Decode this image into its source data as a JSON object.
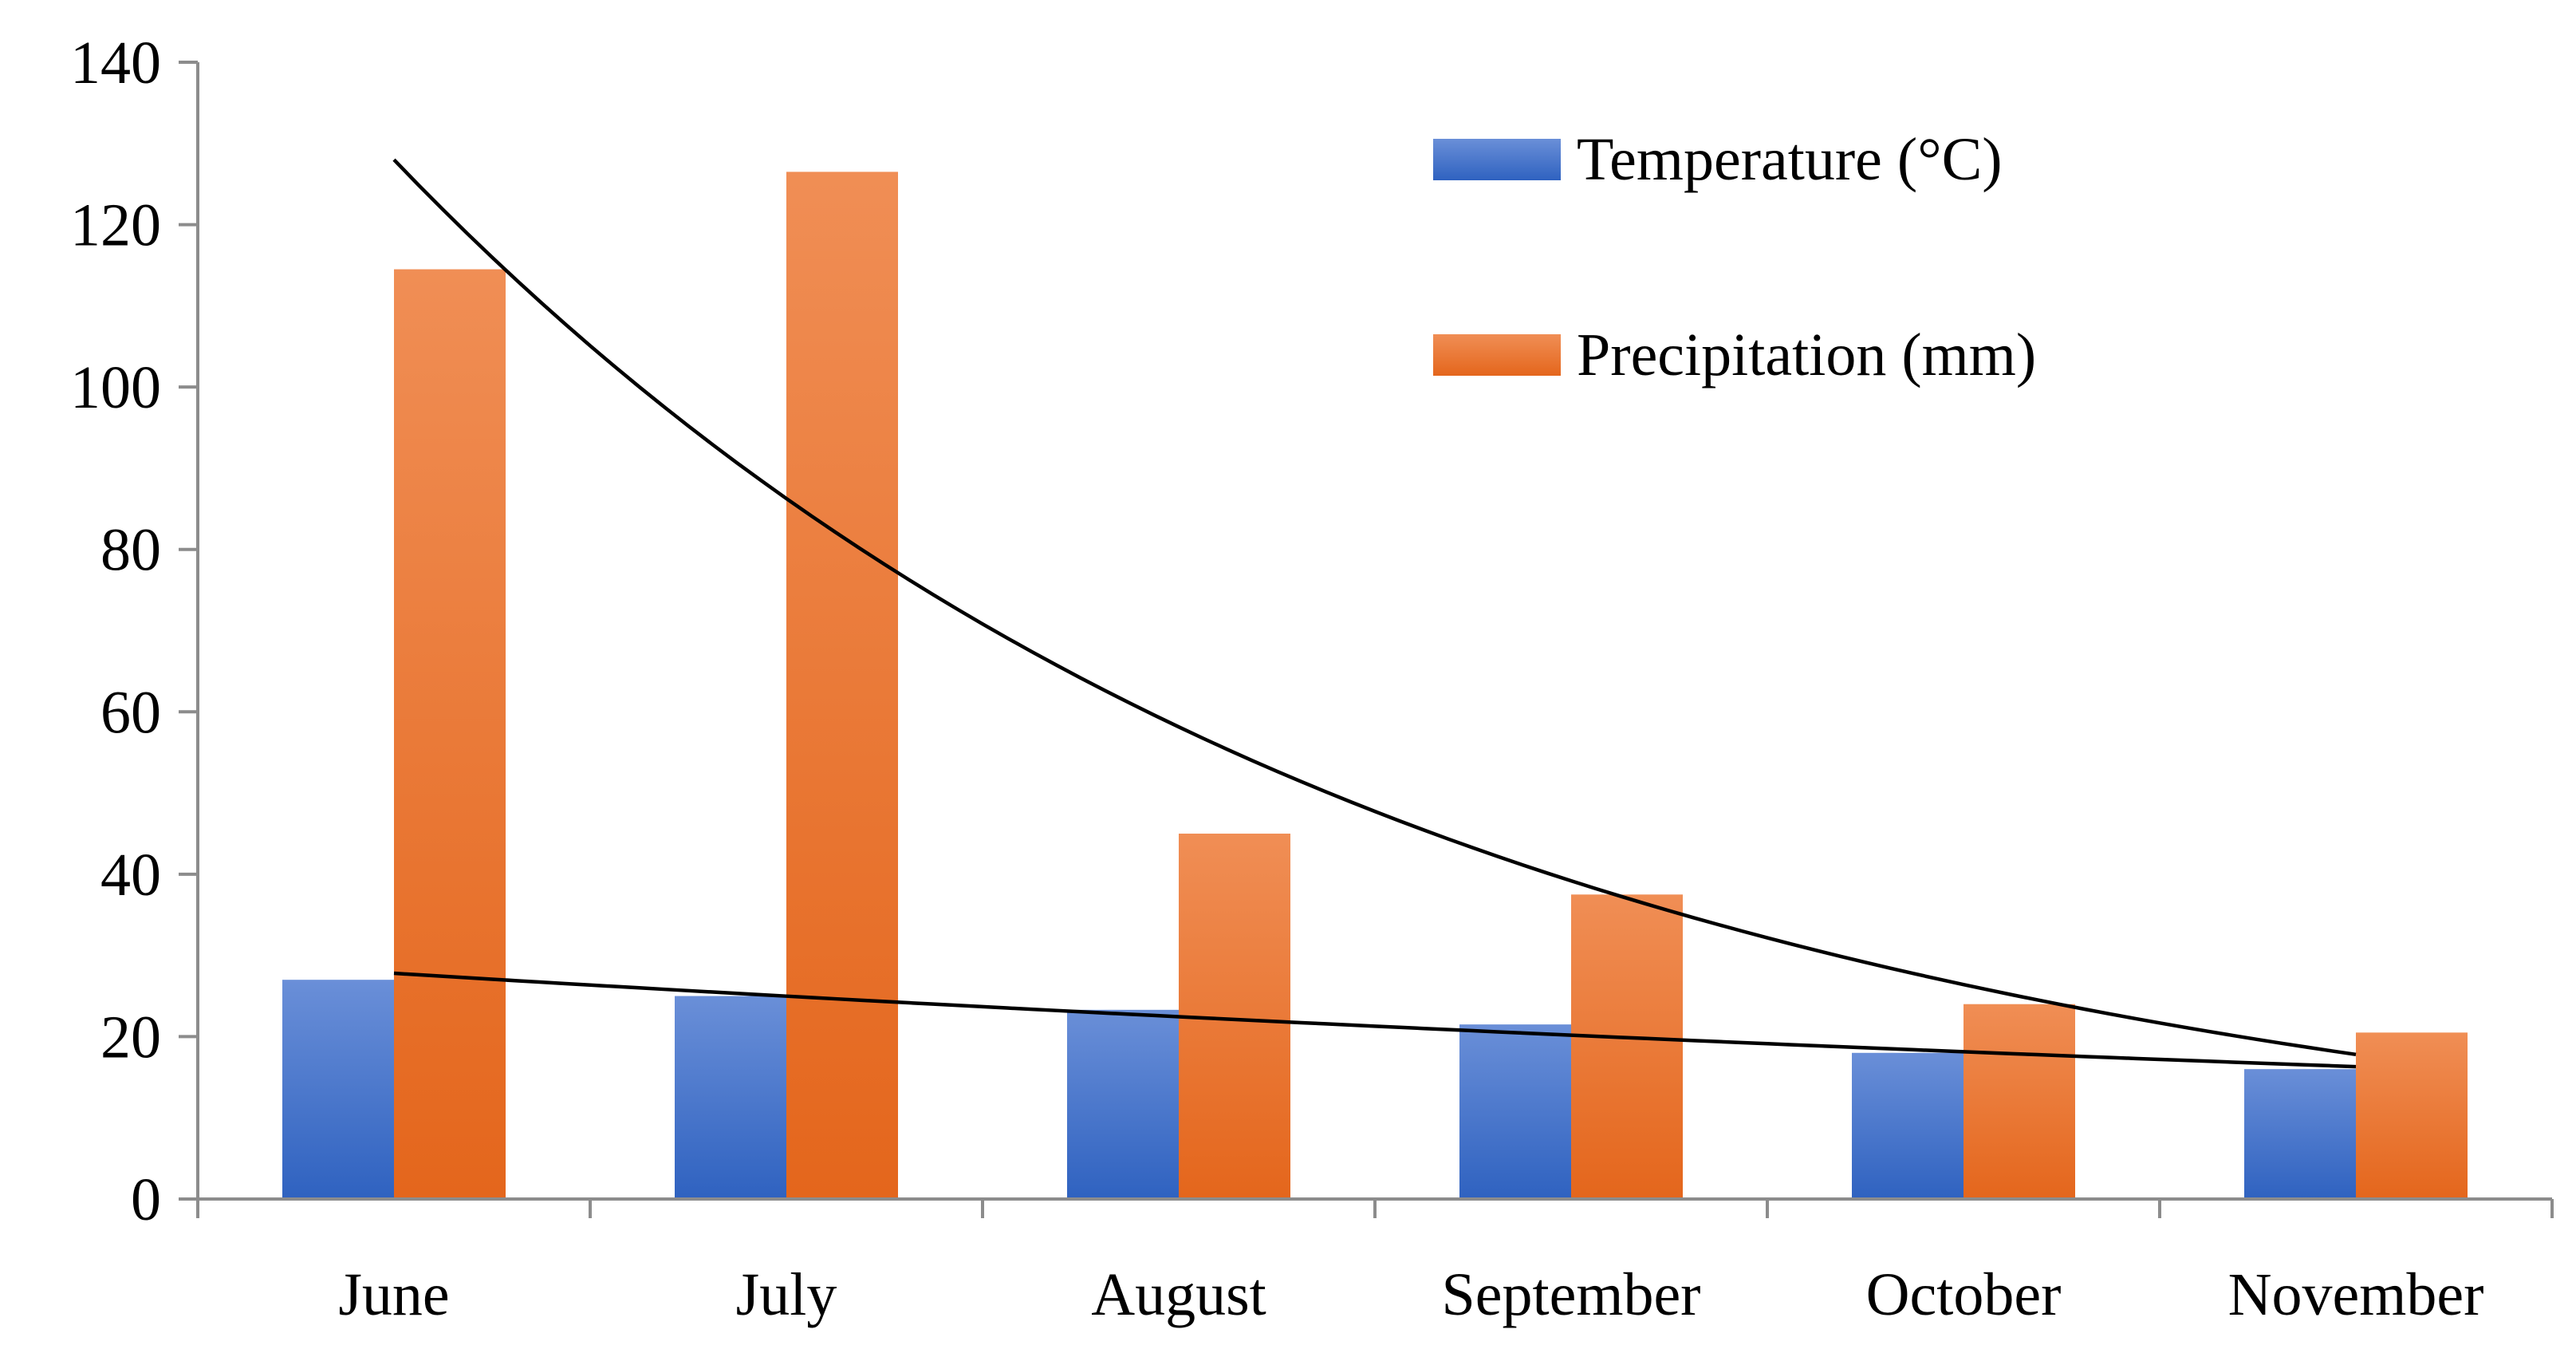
{
  "chart_data": {
    "type": "bar",
    "title": "",
    "xlabel": "",
    "ylabel": "",
    "categories": [
      "June",
      "July",
      "August",
      "September",
      "October",
      "November"
    ],
    "ylim": [
      0,
      140
    ],
    "yticks": [
      0,
      20,
      40,
      60,
      80,
      100,
      120,
      140
    ],
    "grid": false,
    "legend_position": "top-right",
    "series": [
      {
        "name": "Temperature (°C)",
        "values": [
          27,
          25,
          23.3,
          21.5,
          18,
          16
        ],
        "color_top": "#6a8fd8",
        "color_bottom": "#2f62c0"
      },
      {
        "name": "Precipitation (mm)",
        "values": [
          114.5,
          126.5,
          45,
          37.5,
          24,
          20.5
        ],
        "color_top": "#f08e55",
        "color_bottom": "#e4661c"
      }
    ],
    "trendlines": [
      {
        "name": "Temperature trend",
        "type": "exponential",
        "color": "#000000",
        "points": [
          {
            "x": "June",
            "y": 27.8
          },
          {
            "x": "November",
            "y": 16.3
          }
        ]
      },
      {
        "name": "Precipitation trend",
        "type": "exponential",
        "color": "#000000",
        "points": [
          {
            "x": "June",
            "y": 128
          },
          {
            "x": "November",
            "y": 17.8
          }
        ]
      }
    ]
  }
}
